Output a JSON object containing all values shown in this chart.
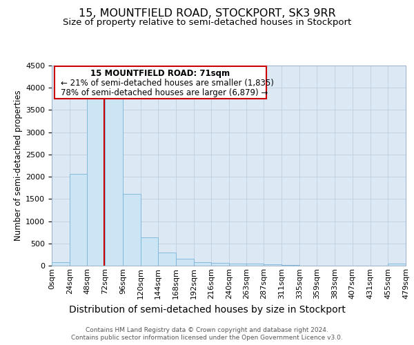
{
  "title": "15, MOUNTFIELD ROAD, STOCKPORT, SK3 9RR",
  "subtitle": "Size of property relative to semi-detached houses in Stockport",
  "xlabel": "Distribution of semi-detached houses by size in Stockport",
  "ylabel": "Number of semi-detached properties",
  "footer_line1": "Contains HM Land Registry data © Crown copyright and database right 2024.",
  "footer_line2": "Contains public sector information licensed under the Open Government Licence v3.0.",
  "property_label": "15 MOUNTFIELD ROAD: 71sqm",
  "annotation_line1": "← 21% of semi-detached houses are smaller (1,835)",
  "annotation_line2": "78% of semi-detached houses are larger (6,879) →",
  "property_size": 71,
  "bin_edges": [
    0,
    24,
    48,
    72,
    96,
    120,
    144,
    168,
    192,
    216,
    240,
    263,
    287,
    311,
    335,
    359,
    383,
    407,
    431,
    455,
    479
  ],
  "bin_labels": [
    "0sqm",
    "24sqm",
    "48sqm",
    "72sqm",
    "96sqm",
    "120sqm",
    "144sqm",
    "168sqm",
    "192sqm",
    "216sqm",
    "240sqm",
    "263sqm",
    "287sqm",
    "311sqm",
    "335sqm",
    "359sqm",
    "383sqm",
    "407sqm",
    "431sqm",
    "455sqm",
    "479sqm"
  ],
  "bar_values": [
    80,
    2070,
    3760,
    3760,
    1620,
    640,
    300,
    150,
    80,
    60,
    50,
    40,
    30,
    10,
    5,
    5,
    0,
    5,
    0,
    45
  ],
  "bar_color": "#cce5f5",
  "bar_edge_color": "#7ab4d8",
  "highlight_line_color": "#cc0000",
  "annotation_box_edge_color": "#cc0000",
  "background_color": "#ffffff",
  "plot_bg_color": "#dde8f5",
  "grid_color": "#c0cfe0",
  "ylim": [
    0,
    4500
  ],
  "yticks": [
    0,
    500,
    1000,
    1500,
    2000,
    2500,
    3000,
    3500,
    4000,
    4500
  ],
  "title_fontsize": 11.5,
  "subtitle_fontsize": 9.5,
  "xlabel_fontsize": 10,
  "ylabel_fontsize": 8.5,
  "tick_fontsize": 8,
  "annotation_fontsize": 8.5,
  "footer_fontsize": 6.5
}
